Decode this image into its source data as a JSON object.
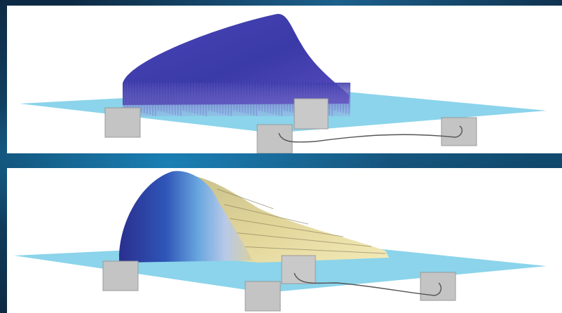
{
  "figure": {
    "panels": [
      {
        "id": "top",
        "style": "vertical-line volume"
      },
      {
        "id": "bottom",
        "style": "shaded surface volume"
      }
    ]
  },
  "colors": {
    "plane": "#7ecfe9",
    "posts": "#c4c4c4",
    "volume_top": "#3c3cb0",
    "volume_bottom_dark": "#2c3fa0",
    "volume_bottom_light": "#e8dfa0",
    "background": "#0d2a44"
  }
}
